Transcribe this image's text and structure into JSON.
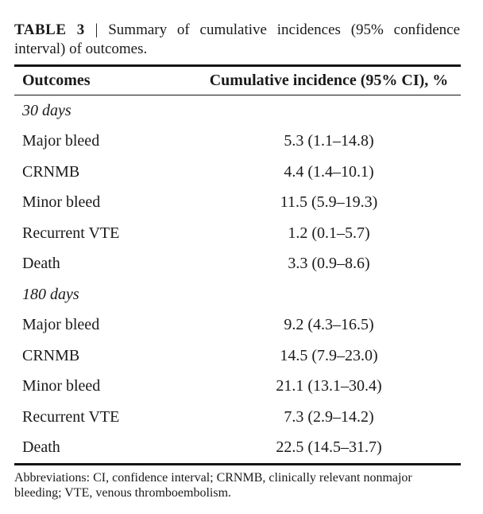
{
  "caption": {
    "label": "TABLE 3",
    "separator": "|",
    "line1": "Summary of cumulative incidences (95% confidence",
    "line2": "interval) of outcomes."
  },
  "table": {
    "columns": {
      "outcomes": "Outcomes",
      "incidence": "Cumulative incidence (95% CI), %"
    },
    "sections": [
      {
        "period": "30 days",
        "rows": [
          {
            "outcome": "Major bleed",
            "value": "5.3 (1.1–14.8)"
          },
          {
            "outcome": "CRNMB",
            "value": "4.4 (1.4–10.1)"
          },
          {
            "outcome": "Minor bleed",
            "value": "11.5 (5.9–19.3)"
          },
          {
            "outcome": "Recurrent VTE",
            "value": "1.2 (0.1–5.7)"
          },
          {
            "outcome": "Death",
            "value": "3.3 (0.9–8.6)"
          }
        ]
      },
      {
        "period": "180 days",
        "rows": [
          {
            "outcome": "Major bleed",
            "value": "9.2 (4.3–16.5)"
          },
          {
            "outcome": "CRNMB",
            "value": "14.5 (7.9–23.0)"
          },
          {
            "outcome": "Minor bleed",
            "value": "21.1 (13.1–30.4)"
          },
          {
            "outcome": "Recurrent VTE",
            "value": "7.3 (2.9–14.2)"
          },
          {
            "outcome": "Death",
            "value": "22.5 (14.5–31.7)"
          }
        ]
      }
    ]
  },
  "footnote": "Abbreviations: CI, confidence interval; CRNMB, clinically relevant nonmajor bleeding; VTE, venous thromboembolism.",
  "colors": {
    "text": "#1a1a1a",
    "rule": "#141414",
    "background": "#ffffff"
  }
}
